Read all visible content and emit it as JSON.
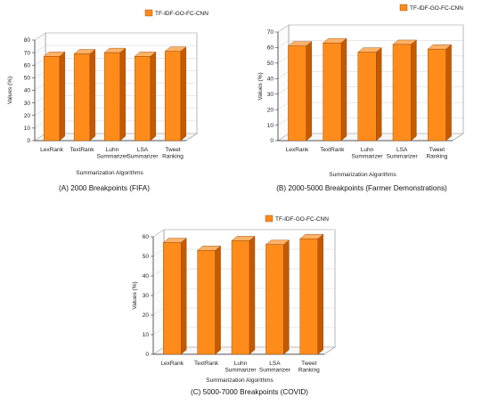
{
  "colors": {
    "bar_front": "#ff8c1a",
    "bar_side": "#c45a00",
    "bar_top": "#ffb266",
    "grid": "#d0d0d0",
    "frame": "#888888"
  },
  "chart_data": [
    {
      "type": "bar",
      "caption": "(A) 2000 Breakpoints (FIFA)",
      "legend": "TF-IDF-GO-FC-CNN",
      "xlabel": "Summarization Algorithms",
      "ylabel": "Values (%)",
      "ylim": [
        0,
        80
      ],
      "yticks": [
        0,
        10,
        20,
        30,
        40,
        50,
        60,
        70,
        80
      ],
      "categories": [
        "LexRank",
        "TextRank",
        "Luhn Summarizer",
        "LSA Summarizer",
        "Tweet Ranking"
      ],
      "series": [
        {
          "name": "TF-IDF-GO-FC-CNN",
          "values": [
            67,
            69,
            70,
            67,
            71
          ]
        }
      ]
    },
    {
      "type": "bar",
      "caption": "(B) 2000-5000 Breakpoints (Farmer Demonstrations)",
      "legend": "TF-IDF-GO-FC-CNN",
      "xlabel": "Summarization Algorithms",
      "ylabel": "Values (%)",
      "ylim": [
        0,
        70
      ],
      "yticks": [
        0,
        10,
        20,
        30,
        40,
        50,
        60,
        70
      ],
      "categories": [
        "LexRank",
        "TextRank",
        "Luhn Summarizer",
        "LSA Summarizer",
        "Tweet Ranking"
      ],
      "series": [
        {
          "name": "TF-IDF-GO-FC-CNN",
          "values": [
            61,
            63,
            57,
            62,
            59
          ]
        }
      ]
    },
    {
      "type": "bar",
      "caption": "(C) 5000-7000 Breakpoints (COVID)",
      "legend": "TF-IDF-GO-FC-CNN",
      "xlabel": "Summarization Algorithms",
      "ylabel": "Values (%)",
      "ylim": [
        0,
        60
      ],
      "yticks": [
        0,
        10,
        20,
        30,
        40,
        50,
        60
      ],
      "categories": [
        "LexRank",
        "TextRank",
        "Luhn Summarizer",
        "LSA Summarizer",
        "Tweet Ranking"
      ],
      "series": [
        {
          "name": "TF-IDF-GO-FC-CNN",
          "values": [
            57,
            53,
            58,
            56,
            59
          ]
        }
      ]
    }
  ]
}
